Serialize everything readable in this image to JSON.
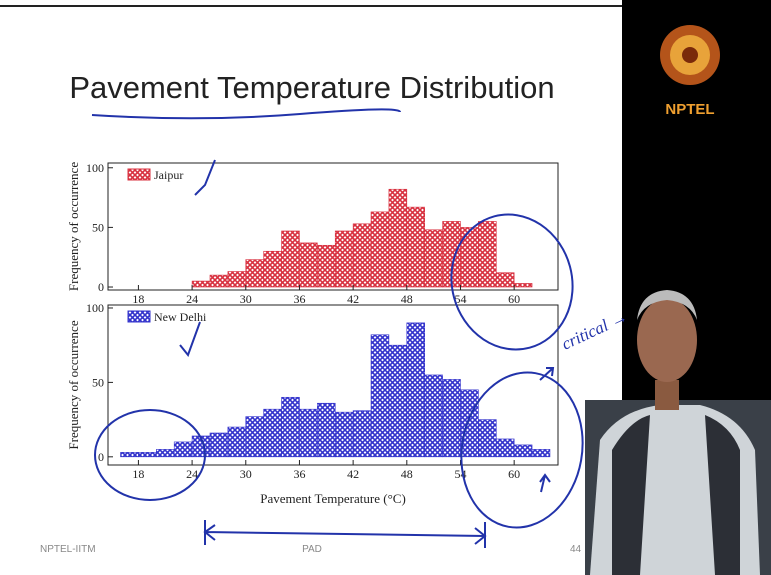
{
  "slide": {
    "title": "Pavement Temperature Distribution",
    "footer_left": "NPTEL-IITM",
    "footer_center": "PAD",
    "page": "44",
    "annotation": "critical →"
  },
  "logo": "NPTEL",
  "chart_data": [
    {
      "type": "histogram",
      "y_label": "Frequency of occurrence",
      "legend": "top-left",
      "bins": [
        24,
        26,
        28,
        30,
        32,
        34,
        36,
        38,
        40,
        42,
        44,
        46,
        48,
        50,
        52,
        54,
        56,
        58,
        60,
        62
      ],
      "series": [
        {
          "name": "Jaipur",
          "color": "#d8303f",
          "values": [
            5,
            10,
            13,
            23,
            30,
            47,
            37,
            35,
            47,
            53,
            63,
            82,
            67,
            48,
            55,
            50,
            55,
            12,
            3
          ]
        }
      ],
      "xlim": [
        14.6,
        64.9
      ],
      "xticks": [
        18,
        24,
        30,
        36,
        42,
        48,
        54,
        60
      ],
      "ylim": [
        -2.5,
        104
      ],
      "yticks": [
        0,
        50,
        100
      ]
    },
    {
      "type": "histogram",
      "y_label": "Frequency of occurrence",
      "x_label": "Pavement Temperature (°C)",
      "legend": "top-left",
      "bins": [
        16,
        18,
        20,
        22,
        24,
        26,
        28,
        30,
        32,
        34,
        36,
        38,
        40,
        42,
        44,
        46,
        48,
        50,
        52,
        54,
        56,
        58,
        60,
        62,
        64
      ],
      "series": [
        {
          "name": "New Delhi",
          "color": "#3333cc",
          "values": [
            3,
            3,
            5,
            10,
            14,
            16,
            20,
            27,
            32,
            40,
            32,
            36,
            30,
            31,
            82,
            75,
            90,
            55,
            52,
            45,
            25,
            12,
            8,
            5
          ]
        }
      ],
      "xlim": [
        14.6,
        64.9
      ],
      "xticks": [
        18,
        24,
        30,
        36,
        42,
        48,
        54,
        60
      ],
      "ylim": [
        -5.5,
        102
      ],
      "yticks": [
        0,
        50,
        100
      ]
    }
  ]
}
